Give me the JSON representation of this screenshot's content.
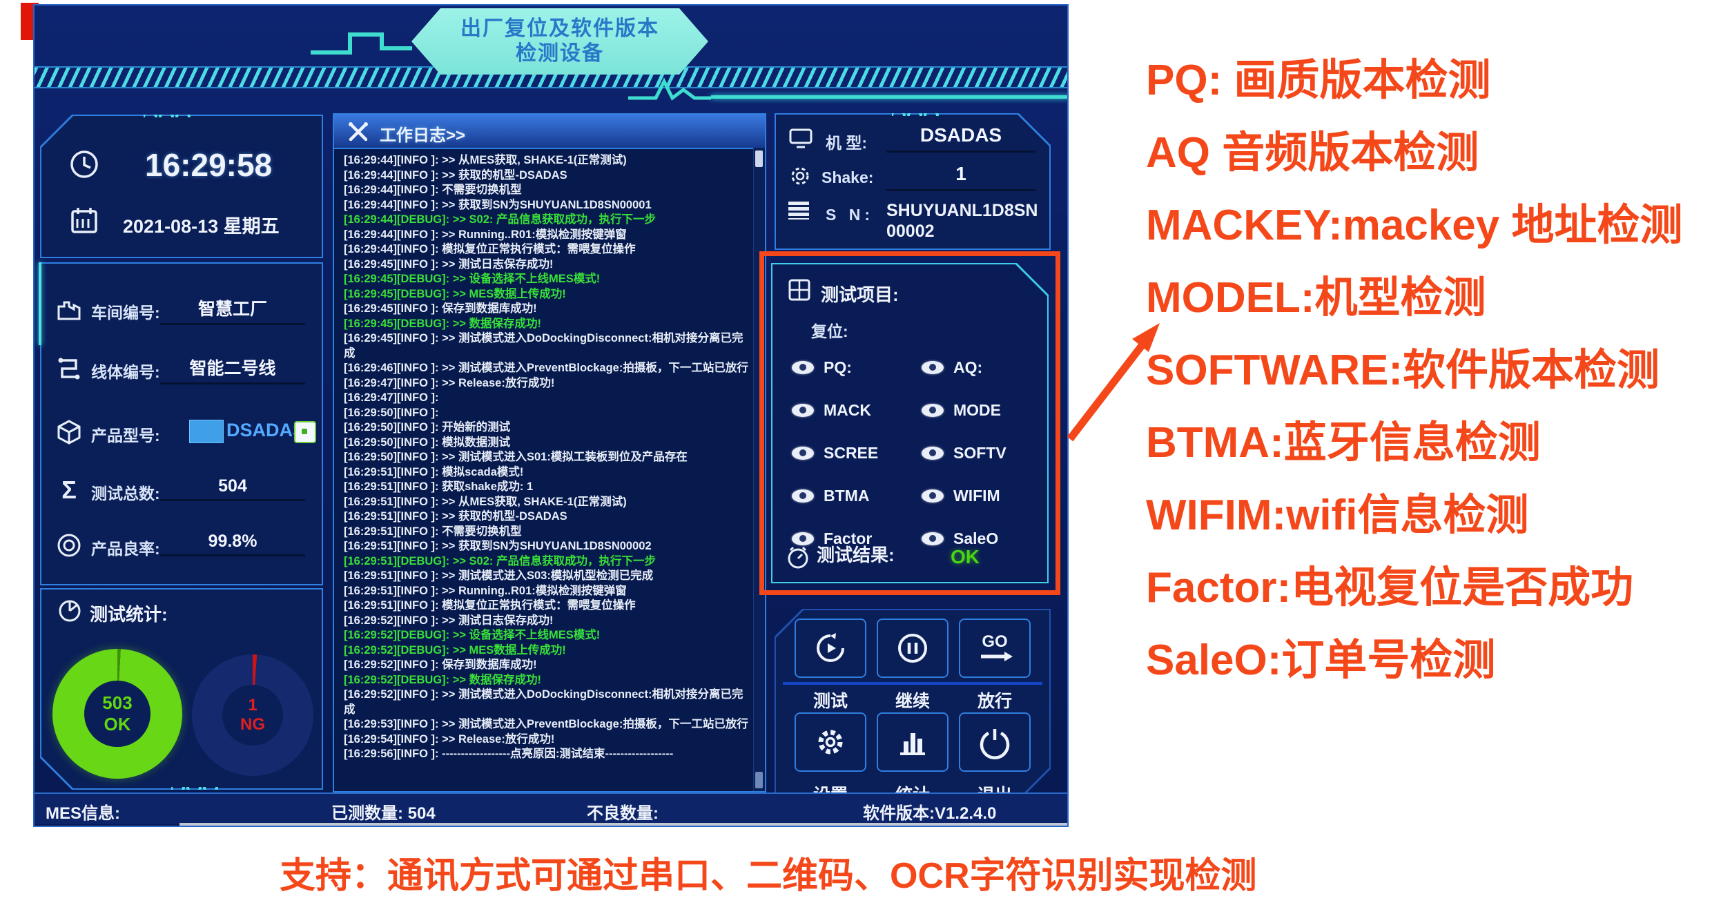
{
  "colors": {
    "accent_orange": "#f4481a",
    "ui_bg": "#0a1d5e",
    "panel_border_blue": "#2f7fe0",
    "cyan_accent": "#4fe2e6",
    "ok_green": "#62d80e",
    "debug_green": "#38e038",
    "ng_red": "#e02020",
    "value_blue": "#55aaff",
    "banner_fill": "#8ceee6"
  },
  "icons": {
    "clock": "clock-icon",
    "calendar": "calendar-icon",
    "workshop": "factory-icon",
    "line": "route-icon",
    "product": "cube-icon",
    "total": "sigma-icon",
    "yield": "target-icon",
    "stats": "pie-icon",
    "log": "tools-icon",
    "machine": "monitor-icon",
    "shake": "gear-icon",
    "sn": "list-icon",
    "test_items": "grid-icon",
    "result": "dial-icon",
    "item_toggle": "eye-icon",
    "test": "refresh-play-icon",
    "continue": "pause-circle-icon",
    "release": "go-arrow-icon",
    "settings": "gear-icon",
    "statistics": "bar-chart-icon",
    "exit": "power-icon"
  },
  "banner": {
    "line1": "出厂复位及软件版本",
    "line2": "检测设备"
  },
  "clock": {
    "time": "16:29:58",
    "date": "2021-08-13 星期五"
  },
  "info": {
    "rows": [
      {
        "label": "车间编号:",
        "value": "智慧工厂"
      },
      {
        "label": "线体编号:",
        "value": "智能二号线"
      },
      {
        "label": "产品型号:",
        "value": "DSADAS"
      },
      {
        "label": "测试总数:",
        "value": "504"
      },
      {
        "label": "产品良率:",
        "value": "99.8%"
      }
    ]
  },
  "stats": {
    "title": "测试统计:",
    "ok_value": "503",
    "ok_label": "OK",
    "ng_value": "1",
    "ng_label": "NG"
  },
  "log": {
    "title": "工作日志>>",
    "lines": [
      {
        "t": "16:29:44",
        "lv": "INFO ",
        "msg": ">> 从MES获取, SHAKE-1(正常测试)"
      },
      {
        "t": "16:29:44",
        "lv": "INFO ",
        "msg": ">> 获取的机型-DSADAS"
      },
      {
        "t": "16:29:44",
        "lv": "INFO ",
        "msg": "不需要切换机型"
      },
      {
        "t": "16:29:44",
        "lv": "INFO ",
        "msg": ">> 获取到SN为SHUYUANL1D8SN00001"
      },
      {
        "t": "16:29:44",
        "lv": "DEBUG",
        "msg": ">> S02: 产品信息获取成功，执行下一步"
      },
      {
        "t": "16:29:44",
        "lv": "INFO ",
        "msg": ">> Running..R01:模拟检测按键弹窗"
      },
      {
        "t": "16:29:44",
        "lv": "INFO ",
        "msg": "模拟复位正常执行模式：需喂复位操作"
      },
      {
        "t": "16:29:45",
        "lv": "INFO ",
        "msg": ">> 测试日志保存成功!"
      },
      {
        "t": "16:29:45",
        "lv": "DEBUG",
        "msg": ">> 设备选择不上线MES模式!"
      },
      {
        "t": "16:29:45",
        "lv": "DEBUG",
        "msg": ">> MES数据上传成功!"
      },
      {
        "t": "16:29:45",
        "lv": "INFO ",
        "msg": "保存到数据库成功!"
      },
      {
        "t": "16:29:45",
        "lv": "DEBUG",
        "msg": ">> 数据保存成功!"
      },
      {
        "t": "16:29:45",
        "lv": "INFO ",
        "msg": ">> 测试模式进入DoDockingDisconnect:相机对接分离已完成"
      },
      {
        "t": "16:29:46",
        "lv": "INFO ",
        "msg": ">> 测试模式进入PreventBlockage:拍摄板，下一工站已放行"
      },
      {
        "t": "16:29:47",
        "lv": "INFO ",
        "msg": ">> Release:放行成功!"
      },
      {
        "t": "16:29:47",
        "lv": "INFO ",
        "msg": ""
      },
      {
        "t": "16:29:50",
        "lv": "INFO ",
        "msg": ""
      },
      {
        "t": "16:29:50",
        "lv": "INFO ",
        "msg": "开始新的测试"
      },
      {
        "t": "16:29:50",
        "lv": "INFO ",
        "msg": "模拟数据测试"
      },
      {
        "t": "16:29:50",
        "lv": "INFO ",
        "msg": ">> 测试模式进入S01:模拟工装板到位及产品存在"
      },
      {
        "t": "16:29:51",
        "lv": "INFO ",
        "msg": "模拟scada模式!"
      },
      {
        "t": "16:29:51",
        "lv": "INFO ",
        "msg": "获取shake成功:  1"
      },
      {
        "t": "16:29:51",
        "lv": "INFO ",
        "msg": ">> 从MES获取, SHAKE-1(正常测试)"
      },
      {
        "t": "16:29:51",
        "lv": "INFO ",
        "msg": ">> 获取的机型-DSADAS"
      },
      {
        "t": "16:29:51",
        "lv": "INFO ",
        "msg": "不需要切换机型"
      },
      {
        "t": "16:29:51",
        "lv": "INFO ",
        "msg": ">> 获取到SN为SHUYUANL1D8SN00002"
      },
      {
        "t": "16:29:51",
        "lv": "DEBUG",
        "msg": ">> S02: 产品信息获取成功，执行下一步"
      },
      {
        "t": "16:29:51",
        "lv": "INFO ",
        "msg": ">> 测试模式进入S03:模拟机型检测已完成"
      },
      {
        "t": "16:29:51",
        "lv": "INFO ",
        "msg": ">> Running..R01:模拟检测按键弹窗"
      },
      {
        "t": "16:29:51",
        "lv": "INFO ",
        "msg": "模拟复位正常执行模式：需喂复位操作"
      },
      {
        "t": "16:29:52",
        "lv": "INFO ",
        "msg": ">> 测试日志保存成功!"
      },
      {
        "t": "16:29:52",
        "lv": "DEBUG",
        "msg": ">> 设备选择不上线MES模式!"
      },
      {
        "t": "16:29:52",
        "lv": "DEBUG",
        "msg": ">> MES数据上传成功!"
      },
      {
        "t": "16:29:52",
        "lv": "INFO ",
        "msg": "保存到数据库成功!"
      },
      {
        "t": "16:29:52",
        "lv": "DEBUG",
        "msg": ">> 数据保存成功!"
      },
      {
        "t": "16:29:52",
        "lv": "INFO ",
        "msg": ">> 测试模式进入DoDockingDisconnect:相机对接分离已完成"
      },
      {
        "t": "16:29:53",
        "lv": "INFO ",
        "msg": ">> 测试模式进入PreventBlockage:拍摄板，下一工站已放行"
      },
      {
        "t": "16:29:54",
        "lv": "INFO ",
        "msg": ">> Release:放行成功!"
      },
      {
        "t": "16:29:56",
        "lv": "INFO ",
        "msg": "------------------点亮原因:测试结束------------------"
      }
    ]
  },
  "machine": {
    "rows": [
      {
        "label": "机 型:",
        "value": "DSADAS"
      },
      {
        "label": "Shake:",
        "value": "1"
      },
      {
        "label": "S N:",
        "value": "SHUYUANL1D8SN00002"
      }
    ]
  },
  "tests": {
    "title": "测试项目:",
    "subtitle": "复位:",
    "items_left": [
      "PQ:",
      "MACK",
      "SCREE",
      "BTMA",
      "Factor"
    ],
    "items_right": [
      "AQ:",
      "MODE",
      "SOFTV",
      "WIFIM",
      "SaleO"
    ],
    "result_label": "测试结果:",
    "result_value": "OK"
  },
  "buttons": {
    "row1": [
      "测试",
      "继续",
      "放行"
    ],
    "row2": [
      "设置",
      "统计",
      "退出"
    ]
  },
  "statusbar": {
    "mes": "MES信息:",
    "tested": "已测数量: 504",
    "defect": "不良数量:",
    "version": "软件版本:V1.2.4.0"
  },
  "annotations": [
    "PQ: 画质版本检测",
    "AQ 音频版本检测",
    "MACKEY:mackey 地址检测",
    "MODEL:机型检测",
    "SOFTWARE:软件版本检测",
    "BTMA:蓝牙信息检测",
    "WIFIM:wifi信息检测",
    "Factor:电视复位是否成功",
    "SaleO:订单号检测"
  ],
  "footer": "支持：通讯方式可通过串口、二维码、OCR字符识别实现检测"
}
